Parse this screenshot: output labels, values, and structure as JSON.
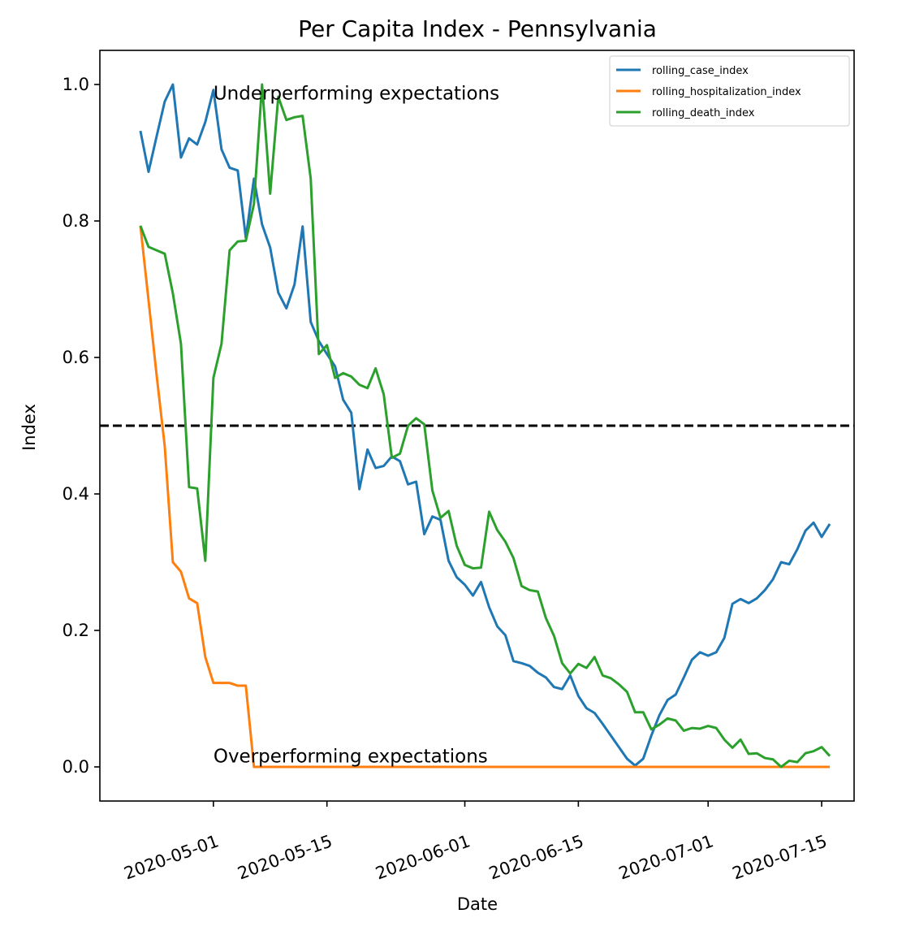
{
  "chart_data": {
    "type": "line",
    "title": "Per Capita Index - Pennsylvania",
    "xlabel": "Date",
    "ylabel": "Index",
    "x_start": "2020-04-22",
    "x_end": "2020-07-15",
    "xlim": [
      "2020-04-17",
      "2020-07-19"
    ],
    "ylim": [
      -0.05,
      1.05
    ],
    "x_ticks": [
      "2020-05-01",
      "2020-05-15",
      "2020-06-01",
      "2020-06-15",
      "2020-07-01",
      "2020-07-15"
    ],
    "y_ticks": [
      0.0,
      0.2,
      0.4,
      0.6,
      0.8,
      1.0
    ],
    "y_tick_labels": [
      "0.0",
      "0.2",
      "0.4",
      "0.6",
      "0.8",
      "1.0"
    ],
    "reference_line": {
      "y": 0.5,
      "style": "dashed",
      "color": "#000000"
    },
    "annotations": [
      {
        "text": "Underperforming expectations",
        "x": "2020-05-01",
        "y": 0.99
      },
      {
        "text": "Overperforming expectations",
        "x": "2020-05-01",
        "y": 0.01
      }
    ],
    "legend": {
      "position": "top-right"
    },
    "grid": false,
    "series": [
      {
        "name": "rolling_case_index",
        "color": "#1f77b4",
        "values": [
          0.932,
          0.872,
          0.924,
          0.975,
          1.0,
          0.893,
          0.921,
          0.912,
          0.945,
          0.992,
          0.905,
          0.878,
          0.874,
          0.775,
          0.862,
          0.795,
          0.761,
          0.695,
          0.672,
          0.707,
          0.792,
          0.652,
          0.624,
          0.605,
          0.587,
          0.538,
          0.519,
          0.407,
          0.465,
          0.438,
          0.441,
          0.455,
          0.448,
          0.414,
          0.418,
          0.341,
          0.367,
          0.362,
          0.302,
          0.278,
          0.267,
          0.251,
          0.271,
          0.234,
          0.206,
          0.193,
          0.155,
          0.152,
          0.148,
          0.138,
          0.131,
          0.117,
          0.114,
          0.134,
          0.104,
          0.086,
          0.079,
          0.063,
          0.046,
          0.029,
          0.012,
          0.002,
          0.012,
          0.046,
          0.076,
          0.098,
          0.106,
          0.131,
          0.157,
          0.168,
          0.163,
          0.168,
          0.189,
          0.239,
          0.246,
          0.24,
          0.247,
          0.259,
          0.275,
          0.3,
          0.297,
          0.319,
          0.346,
          0.358,
          0.337,
          0.356
        ]
      },
      {
        "name": "rolling_hospitalization_index",
        "color": "#ff7f0e",
        "values": [
          0.793,
          0.684,
          0.574,
          0.47,
          0.3,
          0.286,
          0.247,
          0.24,
          0.161,
          0.123,
          0.123,
          0.123,
          0.119,
          0.119,
          0.0,
          0.0,
          0.0,
          0.0,
          0.0,
          0.0,
          0.0,
          0.0,
          0.0,
          0.0,
          0.0,
          0.0,
          0.0,
          0.0,
          0.0,
          0.0,
          0.0,
          0.0,
          0.0,
          0.0,
          0.0,
          0.0,
          0.0,
          0.0,
          0.0,
          0.0,
          0.0,
          0.0,
          0.0,
          0.0,
          0.0,
          0.0,
          0.0,
          0.0,
          0.0,
          0.0,
          0.0,
          0.0,
          0.0,
          0.0,
          0.0,
          0.0,
          0.0,
          0.0,
          0.0,
          0.0,
          0.0,
          0.0,
          0.0,
          0.0,
          0.0,
          0.0,
          0.0,
          0.0,
          0.0,
          0.0,
          0.0,
          0.0,
          0.0,
          0.0,
          0.0,
          0.0,
          0.0,
          0.0,
          0.0,
          0.0,
          0.0,
          0.0,
          0.0,
          0.0,
          0.0,
          0.0
        ]
      },
      {
        "name": "rolling_death_index",
        "color": "#2ca02c",
        "values": [
          0.793,
          0.762,
          0.757,
          0.752,
          0.694,
          0.62,
          0.41,
          0.408,
          0.302,
          0.57,
          0.62,
          0.757,
          0.77,
          0.771,
          0.825,
          1.0,
          0.84,
          0.982,
          0.948,
          0.952,
          0.954,
          0.862,
          0.605,
          0.618,
          0.57,
          0.577,
          0.572,
          0.56,
          0.555,
          0.584,
          0.546,
          0.453,
          0.459,
          0.5,
          0.511,
          0.502,
          0.405,
          0.365,
          0.375,
          0.324,
          0.296,
          0.291,
          0.292,
          0.374,
          0.347,
          0.33,
          0.306,
          0.265,
          0.259,
          0.257,
          0.218,
          0.192,
          0.152,
          0.137,
          0.151,
          0.145,
          0.161,
          0.134,
          0.13,
          0.121,
          0.11,
          0.08,
          0.08,
          0.055,
          0.062,
          0.071,
          0.068,
          0.053,
          0.057,
          0.056,
          0.06,
          0.057,
          0.04,
          0.028,
          0.04,
          0.019,
          0.02,
          0.013,
          0.011,
          0.0,
          0.009,
          0.007,
          0.02,
          0.023,
          0.029,
          0.016
        ]
      }
    ]
  }
}
